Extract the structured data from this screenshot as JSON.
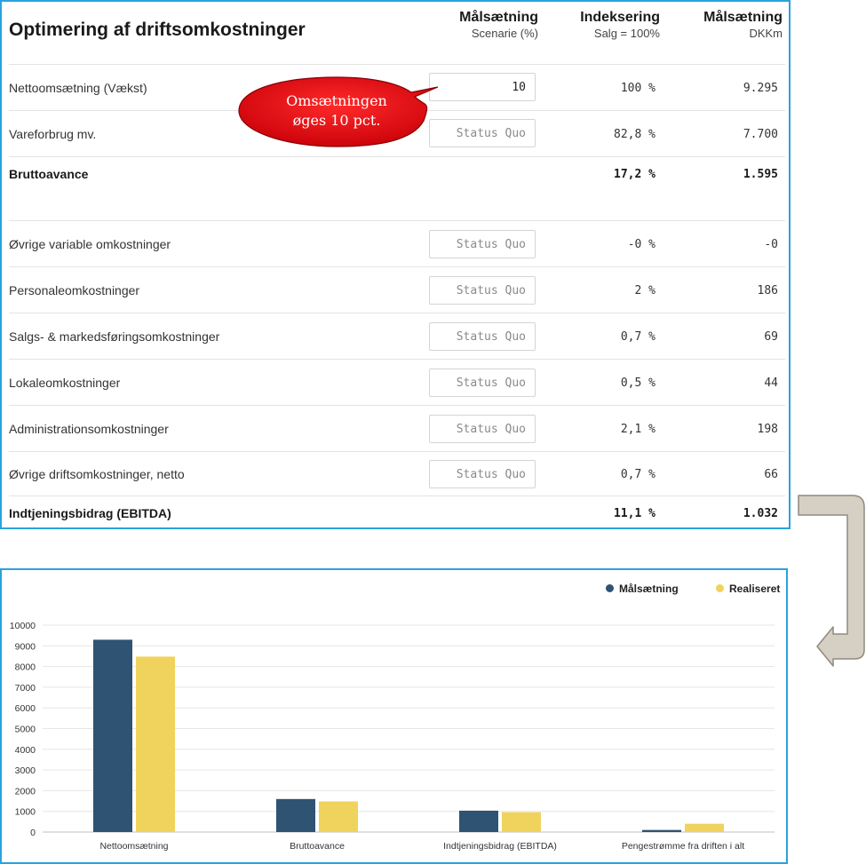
{
  "table": {
    "title": "Optimering af driftsomkostninger",
    "columns": [
      {
        "title": "Målsætning",
        "subtitle": "Scenarie (%)"
      },
      {
        "title": "Indeksering",
        "subtitle": "Salg = 100%"
      },
      {
        "title": "Målsætning",
        "subtitle": "DKKm"
      }
    ],
    "rows": [
      {
        "label": "Nettoomsætning (Vækst)",
        "input_value": "10",
        "input_placeholder": "",
        "index": "100 %",
        "target": "9.295"
      },
      {
        "label": "Vareforbrug mv.",
        "input_value": "",
        "input_placeholder": "Status Quo",
        "index": "82,8 %",
        "target": "7.700"
      },
      {
        "label": "Bruttoavance",
        "index": "17,2 %",
        "target": "1.595"
      },
      {
        "label": "Øvrige variable omkostninger",
        "input_value": "",
        "input_placeholder": "Status Quo",
        "index": "-0 %",
        "target": "-0"
      },
      {
        "label": "Personaleomkostninger",
        "input_value": "",
        "input_placeholder": "Status Quo",
        "index": "2 %",
        "target": "186"
      },
      {
        "label": "Salgs- & markedsføringsomkostninger",
        "input_value": "",
        "input_placeholder": "Status Quo",
        "index": "0,7 %",
        "target": "69"
      },
      {
        "label": "Lokaleomkostninger",
        "input_value": "",
        "input_placeholder": "Status Quo",
        "index": "0,5 %",
        "target": "44"
      },
      {
        "label": "Administrationsomkostninger",
        "input_value": "",
        "input_placeholder": "Status Quo",
        "index": "2,1 %",
        "target": "198"
      },
      {
        "label": "Øvrige driftsomkostninger, netto",
        "input_value": "",
        "input_placeholder": "Status Quo",
        "index": "0,7 %",
        "target": "66"
      },
      {
        "label": "Indtjeningsbidrag (EBITDA)",
        "index": "11,1 %",
        "target": "1.032"
      }
    ]
  },
  "callout": {
    "line1": "Omsætningen",
    "line2": "øges 10 pct.",
    "color": "#e8000b"
  },
  "colors": {
    "panel_border": "#29a3dc",
    "target_series": "#2e5373",
    "realized_series": "#f0d35c",
    "arrow": "#d6d0c4"
  },
  "chart_data": {
    "type": "bar",
    "categories": [
      "Nettoomsætning",
      "Bruttoavance",
      "Indtjeningsbidrag (EBITDA)",
      "Pengestrømme fra driften i alt"
    ],
    "series": [
      {
        "name": "Målsætning",
        "color": "#2e5373",
        "values": [
          9295,
          1595,
          1032,
          100
        ]
      },
      {
        "name": "Realiseret",
        "color": "#f0d35c",
        "values": [
          8480,
          1480,
          960,
          400
        ]
      }
    ],
    "ylim": [
      0,
      10000
    ],
    "yticks": [
      "0",
      "1000",
      "2000",
      "3000",
      "4000",
      "5000",
      "6000",
      "7000",
      "8000",
      "9000",
      "10000"
    ],
    "grid": true,
    "legend": "top-right",
    "title": "",
    "xlabel": "",
    "ylabel": ""
  }
}
